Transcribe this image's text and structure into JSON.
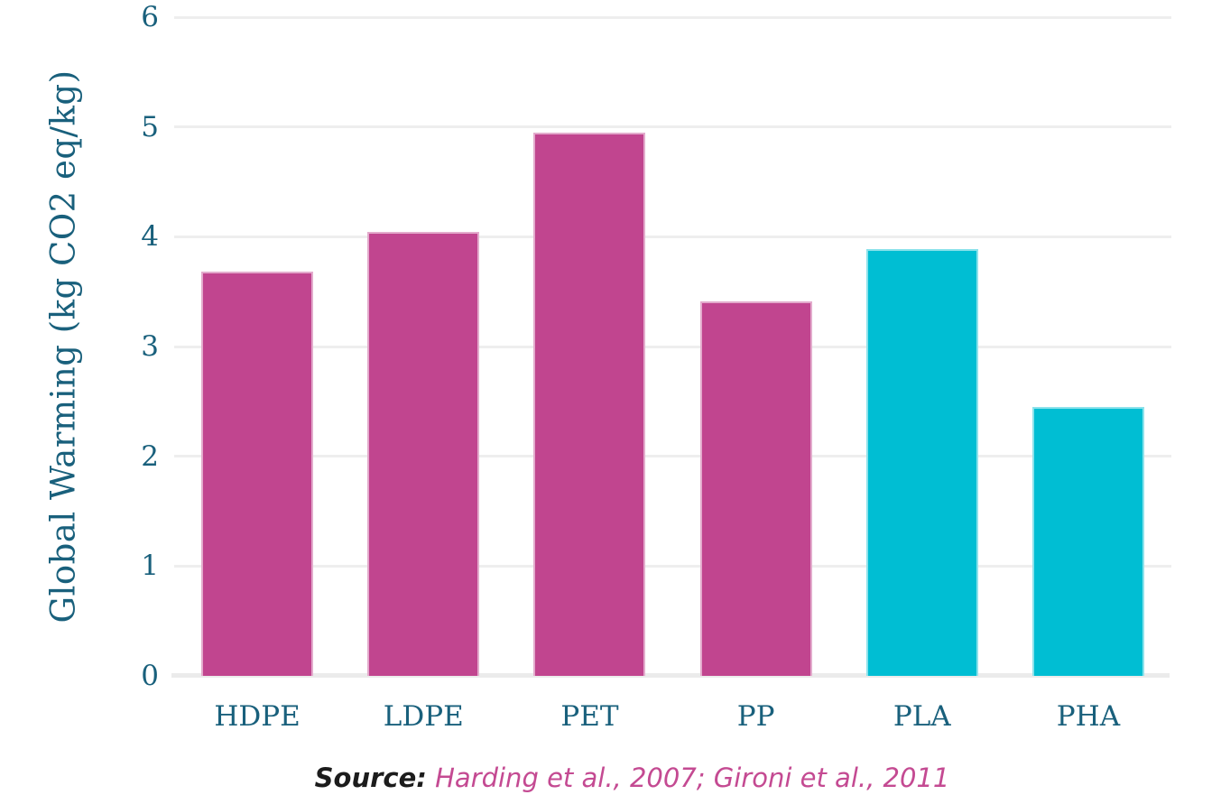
{
  "chart_data": {
    "type": "bar",
    "categories": [
      "HDPE",
      "LDPE",
      "PET",
      "PP",
      "PLA",
      "PHA"
    ],
    "values": [
      3.68,
      4.04,
      4.95,
      3.41,
      3.89,
      2.45
    ],
    "bar_colors": [
      "#c1458f",
      "#c1458f",
      "#c1458f",
      "#c1458f",
      "#00bed3",
      "#00bed3"
    ],
    "title": "",
    "xlabel": "",
    "ylabel": "Global Warming (kg CO2 eq/kg)",
    "ylim": [
      0,
      6
    ],
    "yticks": [
      0,
      1,
      2,
      3,
      4,
      5,
      6
    ],
    "grid": "horizontal",
    "legend": "none",
    "source_prefix": "Source:",
    "source_citation": "Harding et al., 2007; Gironi et al., 2011"
  },
  "colors": {
    "conventional_plastic_bar": "#c1458f",
    "bioplastic_bar": "#00bed3",
    "axis_text": "#19607c",
    "gridline": "#eeeeee",
    "zero_line": "#ebebeb",
    "source_text": "#1c1c1c",
    "source_citation_text": "#c44a92"
  }
}
